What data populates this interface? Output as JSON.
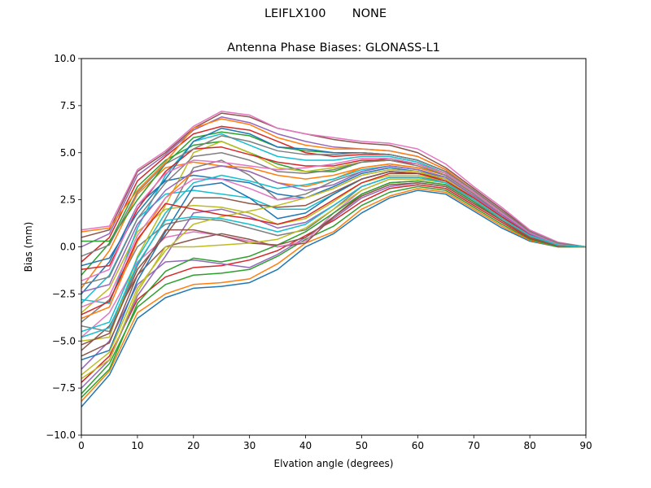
{
  "figure": {
    "suptitle": "LEIFLX100       NONE"
  },
  "chart_data": {
    "type": "line",
    "title": "Antenna Phase Biases: GLONASS-L1",
    "xlabel": "Elvation angle (degrees)",
    "ylabel": "Bias (mm)",
    "xlim": [
      0,
      90
    ],
    "ylim": [
      -10,
      10
    ],
    "xticks": [
      0,
      10,
      20,
      30,
      40,
      50,
      60,
      70,
      80,
      90
    ],
    "xtick_labels": [
      "0",
      "10",
      "20",
      "30",
      "40",
      "50",
      "60",
      "70",
      "80",
      "90"
    ],
    "yticks": [
      -10,
      -7.5,
      -5,
      -2.5,
      0,
      2.5,
      5,
      7.5,
      10
    ],
    "ytick_labels": [
      "−10.0",
      "−7.5",
      "−5.0",
      "−2.5",
      "0.0",
      "2.5",
      "5.0",
      "7.5",
      "10.0"
    ],
    "grid": false,
    "legend": "none",
    "colors": [
      "#1f77b4",
      "#ff7f0e",
      "#2ca02c",
      "#d62728",
      "#9467bd",
      "#8c564b",
      "#e377c2",
      "#7f7f7f",
      "#bcbd22",
      "#17becf"
    ],
    "x": [
      0,
      5,
      10,
      15,
      20,
      25,
      30,
      35,
      40,
      45,
      50,
      55,
      60,
      65,
      70,
      75,
      80,
      85,
      90
    ],
    "series": [
      {
        "values": [
          -8.5,
          -6.8,
          -3.8,
          -2.7,
          -2.2,
          -2.1,
          -1.9,
          -1.2,
          0.0,
          0.7,
          1.8,
          2.6,
          3.0,
          2.8,
          1.9,
          1.0,
          0.3,
          0.0,
          0.0
        ]
      },
      {
        "values": [
          -8.2,
          -6.6,
          -3.5,
          -2.5,
          -2.0,
          -1.9,
          -1.7,
          -0.9,
          0.2,
          0.8,
          2.0,
          2.7,
          3.1,
          2.9,
          2.0,
          1.1,
          0.35,
          0.0,
          0.0
        ]
      },
      {
        "values": [
          -7.8,
          -6.2,
          -3.2,
          -2.0,
          -1.5,
          -1.4,
          -1.2,
          -0.5,
          0.4,
          1.1,
          2.2,
          2.9,
          3.2,
          3.0,
          2.1,
          1.2,
          0.4,
          0.0,
          0.0
        ]
      },
      {
        "values": [
          -7.2,
          -5.8,
          -2.8,
          -1.6,
          -1.1,
          -1.0,
          -0.7,
          -0.2,
          0.6,
          1.4,
          2.4,
          3.1,
          3.3,
          3.1,
          2.2,
          1.3,
          0.45,
          0.05,
          0.0
        ]
      },
      {
        "values": [
          -6.5,
          -5.0,
          -2.0,
          -0.8,
          -0.7,
          -0.9,
          -1.1,
          -0.4,
          0.5,
          1.5,
          2.6,
          3.2,
          3.4,
          3.2,
          2.3,
          1.4,
          0.5,
          0.05,
          0.0
        ]
      },
      {
        "values": [
          -5.5,
          -4.2,
          -1.5,
          0.0,
          0.4,
          0.7,
          0.4,
          0.0,
          0.2,
          1.6,
          2.8,
          3.4,
          3.5,
          3.3,
          2.4,
          1.4,
          0.5,
          0.05,
          0.0
        ]
      },
      {
        "values": [
          -4.8,
          -3.5,
          -0.8,
          0.5,
          0.8,
          0.6,
          0.3,
          0.0,
          0.3,
          1.8,
          3.0,
          3.6,
          3.6,
          3.4,
          2.4,
          1.5,
          0.55,
          0.05,
          0.0
        ]
      },
      {
        "values": [
          -4.0,
          -2.8,
          0.0,
          1.2,
          1.5,
          1.4,
          1.0,
          0.6,
          0.9,
          2.0,
          3.2,
          3.7,
          3.7,
          3.5,
          2.5,
          1.5,
          0.6,
          0.1,
          0.0
        ]
      },
      {
        "values": [
          -3.5,
          -2.2,
          0.8,
          2.0,
          2.2,
          2.1,
          1.8,
          1.2,
          1.5,
          2.4,
          3.4,
          3.8,
          3.8,
          3.5,
          2.6,
          1.6,
          0.6,
          0.1,
          0.0
        ]
      },
      {
        "values": [
          -3.0,
          -1.5,
          1.5,
          2.8,
          3.0,
          2.8,
          2.6,
          2.0,
          2.0,
          2.8,
          3.6,
          4.0,
          3.9,
          3.6,
          2.6,
          1.6,
          0.65,
          0.1,
          0.0
        ]
      },
      {
        "values": [
          -2.5,
          -0.8,
          2.2,
          3.5,
          3.8,
          3.6,
          3.4,
          2.8,
          2.6,
          3.2,
          3.9,
          4.2,
          4.0,
          3.7,
          2.7,
          1.7,
          0.7,
          0.1,
          0.0
        ]
      },
      {
        "values": [
          -2.2,
          -0.2,
          2.8,
          4.2,
          4.5,
          4.3,
          4.0,
          3.4,
          3.2,
          3.6,
          4.2,
          4.4,
          4.2,
          3.8,
          2.8,
          1.7,
          0.7,
          0.15,
          0.0
        ]
      },
      {
        "values": [
          -1.5,
          0.2,
          3.2,
          4.6,
          5.4,
          5.6,
          5.0,
          4.4,
          4.0,
          4.0,
          4.5,
          4.7,
          4.4,
          3.9,
          2.9,
          1.8,
          0.75,
          0.15,
          0.0
        ]
      },
      {
        "values": [
          -0.8,
          0.5,
          3.5,
          4.8,
          6.0,
          6.4,
          6.2,
          5.6,
          5.0,
          4.8,
          4.9,
          4.9,
          4.6,
          4.0,
          3.0,
          1.9,
          0.8,
          0.2,
          0.0
        ]
      },
      {
        "values": [
          0.0,
          0.7,
          3.8,
          4.9,
          6.2,
          6.9,
          6.6,
          6.0,
          5.6,
          5.3,
          5.2,
          5.1,
          4.8,
          4.1,
          3.0,
          1.9,
          0.8,
          0.2,
          0.0
        ]
      },
      {
        "values": [
          0.5,
          0.9,
          4.0,
          5.0,
          6.3,
          7.1,
          6.9,
          6.3,
          6.0,
          5.7,
          5.5,
          5.4,
          5.0,
          4.2,
          3.1,
          2.0,
          0.85,
          0.2,
          0.0
        ]
      },
      {
        "values": [
          0.9,
          1.1,
          4.1,
          5.1,
          6.4,
          7.2,
          7.0,
          6.3,
          6.0,
          5.8,
          5.6,
          5.5,
          5.2,
          4.4,
          3.2,
          2.1,
          0.9,
          0.25,
          0.0
        ]
      },
      {
        "values": [
          -4.2,
          -4.5,
          -1.0,
          1.5,
          4.2,
          4.6,
          3.8,
          2.5,
          2.8,
          3.5,
          4.0,
          4.3,
          4.1,
          3.7,
          2.7,
          1.6,
          0.7,
          0.1,
          0.0
        ]
      },
      {
        "values": [
          -5.0,
          -4.8,
          -0.5,
          2.2,
          5.0,
          5.6,
          5.0,
          4.2,
          4.0,
          4.2,
          4.5,
          4.6,
          4.4,
          3.8,
          2.8,
          1.7,
          0.7,
          0.15,
          0.0
        ]
      },
      {
        "values": [
          -2.8,
          -3.0,
          1.0,
          3.8,
          5.6,
          6.0,
          5.4,
          4.8,
          4.6,
          4.6,
          4.8,
          4.8,
          4.5,
          3.9,
          2.9,
          1.8,
          0.75,
          0.15,
          0.0
        ]
      },
      {
        "values": [
          -6.0,
          -5.5,
          -1.8,
          0.8,
          3.2,
          3.4,
          2.6,
          1.5,
          1.8,
          2.8,
          3.6,
          4.0,
          3.9,
          3.6,
          2.6,
          1.6,
          0.65,
          0.1,
          0.0
        ]
      },
      {
        "values": [
          -3.8,
          -3.2,
          0.3,
          2.6,
          4.0,
          4.3,
          4.2,
          3.8,
          3.6,
          3.8,
          4.2,
          4.4,
          4.2,
          3.8,
          2.8,
          1.7,
          0.7,
          0.1,
          0.0
        ]
      },
      {
        "values": [
          0.3,
          0.3,
          2.5,
          4.4,
          5.8,
          6.1,
          5.9,
          5.3,
          5.1,
          5.0,
          5.0,
          4.9,
          4.6,
          4.0,
          3.0,
          1.9,
          0.8,
          0.2,
          0.0
        ]
      },
      {
        "values": [
          -1.2,
          -1.0,
          2.0,
          4.0,
          5.2,
          5.3,
          4.9,
          4.5,
          4.3,
          4.3,
          4.6,
          4.6,
          4.4,
          3.9,
          2.9,
          1.8,
          0.75,
          0.15,
          0.0
        ]
      },
      {
        "values": [
          -7.5,
          -6.0,
          -2.6,
          -0.5,
          1.8,
          2.0,
          1.6,
          1.0,
          1.3,
          2.2,
          3.2,
          3.7,
          3.7,
          3.4,
          2.5,
          1.5,
          0.6,
          0.1,
          0.0
        ]
      },
      {
        "values": [
          -5.2,
          -4.6,
          -1.2,
          0.6,
          2.6,
          2.6,
          2.3,
          2.1,
          2.2,
          2.9,
          3.6,
          4.0,
          3.9,
          3.6,
          2.6,
          1.6,
          0.65,
          0.1,
          0.0
        ]
      },
      {
        "values": [
          -3.2,
          -2.6,
          0.6,
          2.6,
          3.6,
          3.6,
          3.1,
          2.5,
          2.6,
          3.1,
          3.8,
          4.1,
          4.0,
          3.6,
          2.7,
          1.6,
          0.7,
          0.1,
          0.0
        ]
      },
      {
        "values": [
          -2.0,
          -1.6,
          1.5,
          3.4,
          4.8,
          5.0,
          4.6,
          4.0,
          3.9,
          4.1,
          4.5,
          4.6,
          4.3,
          3.8,
          2.8,
          1.7,
          0.7,
          0.15,
          0.0
        ]
      },
      {
        "values": [
          -6.8,
          -5.6,
          -2.2,
          -0.2,
          1.2,
          1.6,
          1.9,
          2.2,
          2.6,
          3.1,
          3.8,
          4.1,
          4.0,
          3.6,
          2.6,
          1.6,
          0.65,
          0.1,
          0.0
        ]
      },
      {
        "values": [
          -4.5,
          -4.0,
          -0.6,
          1.8,
          3.4,
          3.8,
          3.5,
          3.1,
          3.3,
          3.6,
          4.1,
          4.3,
          4.1,
          3.7,
          2.7,
          1.7,
          0.7,
          0.1,
          0.0
        ]
      },
      {
        "values": [
          -1.0,
          -0.6,
          1.8,
          3.6,
          5.6,
          6.3,
          6.0,
          5.3,
          5.2,
          5.0,
          5.0,
          4.9,
          4.6,
          4.0,
          3.0,
          1.9,
          0.8,
          0.2,
          0.0
        ]
      },
      {
        "values": [
          0.8,
          1.0,
          3.0,
          4.5,
          6.3,
          6.8,
          6.5,
          5.8,
          5.4,
          5.2,
          5.2,
          5.1,
          4.8,
          4.1,
          3.0,
          1.9,
          0.8,
          0.2,
          0.0
        ]
      },
      {
        "values": [
          -8.0,
          -6.5,
          -3.0,
          -1.3,
          -0.6,
          -0.8,
          -0.5,
          0.1,
          0.8,
          1.8,
          2.8,
          3.4,
          3.5,
          3.3,
          2.4,
          1.4,
          0.5,
          0.05,
          0.0
        ]
      },
      {
        "values": [
          -3.6,
          -2.9,
          0.4,
          2.3,
          2.0,
          1.7,
          1.5,
          1.2,
          1.6,
          2.5,
          3.4,
          3.9,
          3.9,
          3.5,
          2.6,
          1.6,
          0.65,
          0.1,
          0.0
        ]
      },
      {
        "values": [
          -2.4,
          -2.0,
          1.2,
          3.0,
          4.0,
          4.3,
          4.0,
          3.4,
          3.0,
          3.3,
          4.0,
          4.3,
          4.1,
          3.7,
          2.7,
          1.7,
          0.7,
          0.1,
          0.0
        ]
      },
      {
        "values": [
          -5.8,
          -5.1,
          -1.5,
          0.9,
          0.9,
          0.6,
          0.2,
          0.1,
          0.5,
          1.6,
          2.7,
          3.3,
          3.4,
          3.2,
          2.3,
          1.4,
          0.5,
          0.05,
          0.0
        ]
      },
      {
        "values": [
          -1.8,
          -1.2,
          2.2,
          3.9,
          4.6,
          4.5,
          4.3,
          4.1,
          4.2,
          4.4,
          4.7,
          4.7,
          4.4,
          3.9,
          2.9,
          1.8,
          0.75,
          0.15,
          0.0
        ]
      },
      {
        "values": [
          -0.5,
          0.1,
          2.9,
          4.4,
          5.2,
          5.9,
          5.6,
          5.1,
          4.9,
          4.9,
          5.0,
          4.9,
          4.6,
          4.0,
          3.0,
          1.9,
          0.8,
          0.2,
          0.0
        ]
      },
      {
        "values": [
          -7.0,
          -6.0,
          -2.4,
          0.0,
          0.0,
          0.1,
          0.2,
          0.4,
          1.0,
          2.0,
          3.0,
          3.6,
          3.6,
          3.4,
          2.5,
          1.5,
          0.6,
          0.1,
          0.0
        ]
      },
      {
        "values": [
          -4.8,
          -4.3,
          -0.9,
          1.4,
          1.6,
          1.5,
          1.2,
          0.8,
          1.2,
          2.2,
          3.2,
          3.7,
          3.7,
          3.4,
          2.5,
          1.5,
          0.6,
          0.1,
          0.0
        ]
      }
    ]
  }
}
